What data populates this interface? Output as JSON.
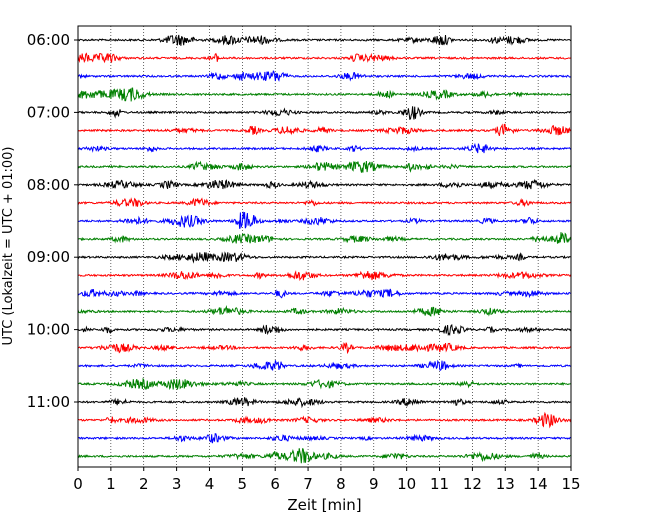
{
  "chart_data": {
    "type": "line",
    "subtype": "helicorder",
    "xlabel": "Zeit  [min]",
    "ylabel": "UTC (Lokalzeit = UTC + 01:00)",
    "xlim": [
      0,
      15
    ],
    "x_ticks": [
      0,
      1,
      2,
      3,
      4,
      5,
      6,
      7,
      8,
      9,
      10,
      11,
      12,
      13,
      14,
      15
    ],
    "y_tick_labels": [
      "06:00",
      "07:00",
      "08:00",
      "09:00",
      "10:00",
      "11:00"
    ],
    "trace_count": 24,
    "trace_minutes": 15,
    "trace_colors": [
      "#000000",
      "#ff0000",
      "#0000ff",
      "#008000"
    ],
    "grid": {
      "x": true,
      "style": "dotted"
    },
    "series": [
      {
        "start": "06:00",
        "color": "#000000"
      },
      {
        "start": "06:15",
        "color": "#ff0000"
      },
      {
        "start": "06:30",
        "color": "#0000ff"
      },
      {
        "start": "06:45",
        "color": "#008000"
      },
      {
        "start": "07:00",
        "color": "#000000"
      },
      {
        "start": "07:15",
        "color": "#ff0000"
      },
      {
        "start": "07:30",
        "color": "#0000ff"
      },
      {
        "start": "07:45",
        "color": "#008000"
      },
      {
        "start": "08:00",
        "color": "#000000"
      },
      {
        "start": "08:15",
        "color": "#ff0000"
      },
      {
        "start": "08:30",
        "color": "#0000ff"
      },
      {
        "start": "08:45",
        "color": "#008000"
      },
      {
        "start": "09:00",
        "color": "#000000"
      },
      {
        "start": "09:15",
        "color": "#ff0000"
      },
      {
        "start": "09:30",
        "color": "#0000ff"
      },
      {
        "start": "09:45",
        "color": "#008000"
      },
      {
        "start": "10:00",
        "color": "#000000"
      },
      {
        "start": "10:15",
        "color": "#ff0000"
      },
      {
        "start": "10:30",
        "color": "#0000ff"
      },
      {
        "start": "10:45",
        "color": "#008000"
      },
      {
        "start": "11:00",
        "color": "#000000"
      },
      {
        "start": "11:15",
        "color": "#ff0000"
      },
      {
        "start": "11:30",
        "color": "#0000ff"
      },
      {
        "start": "11:45",
        "color": "#008000"
      }
    ]
  }
}
